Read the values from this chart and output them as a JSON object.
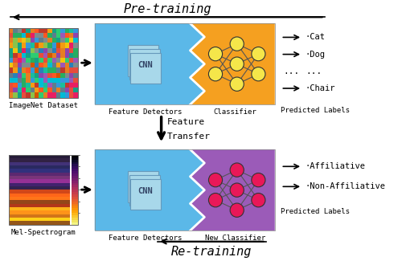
{
  "title": "Pre-training",
  "title_fontsize": 11,
  "bg_color": "#ffffff",
  "blue_color": "#5bb8e8",
  "orange_color": "#f5a020",
  "purple_color": "#9b5bb8",
  "yellow_node_color": "#f5e64a",
  "pink_node_color": "#e81858",
  "cnn_box_color": "#a8d8ea",
  "cnn_box_edge": "#6699bb",
  "cnn_text": "CNN",
  "imagenet_label": "ImageNet Dataset",
  "mel_label": "Mel-Spectrogram",
  "feature_label": "Feature Detectors",
  "classifier_label": "Classifier",
  "new_classifier_label": "New Classifier",
  "retrain_label": "Re-training",
  "transfer_label_1": "Feature",
  "transfer_label_2": "Transfer",
  "predicted_labels": "Predicted Labels",
  "top_outputs": [
    "·Cat",
    "·Dog",
    "...",
    "·Chair"
  ],
  "top_is_dots": [
    false,
    false,
    true,
    false
  ],
  "bot_outputs": [
    "·Affiliative",
    "·Non-Affiliative"
  ],
  "font_family": "monospace",
  "label_fontsize": 7,
  "output_fontsize": 7.5
}
